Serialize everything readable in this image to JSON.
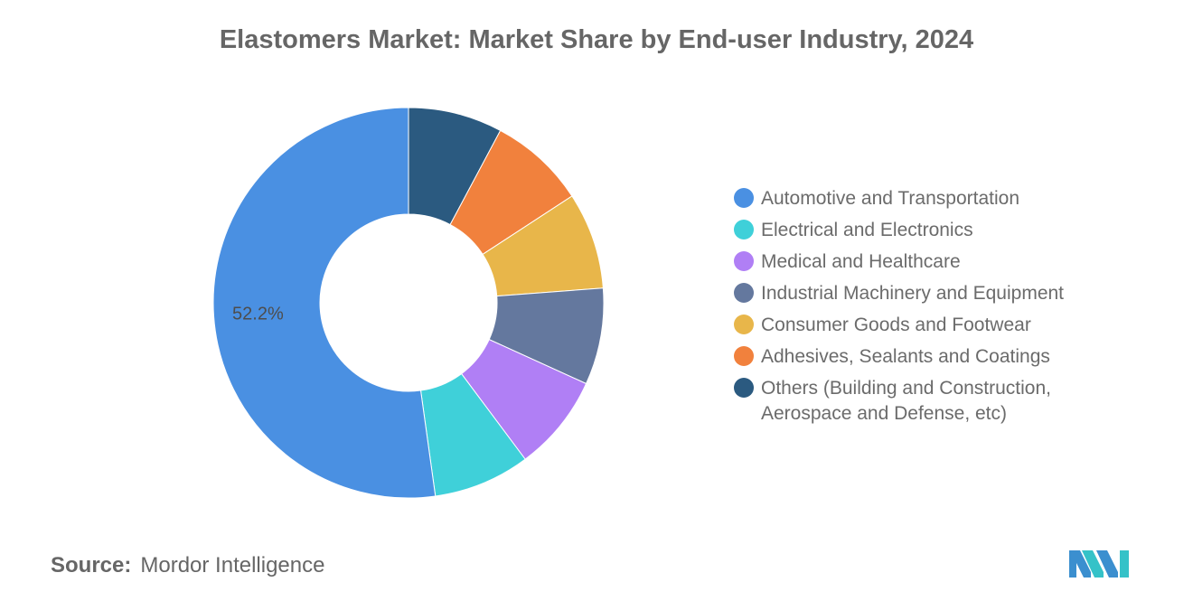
{
  "title": "Elastomers Market: Market Share by End-user Industry, 2024",
  "source_label": "Source:",
  "source_value": "Mordor Intelligence",
  "chart_data": {
    "type": "pie",
    "donut": true,
    "title": "Elastomers Market: Market Share by End-user Industry, 2024",
    "unit": "%",
    "categories": [
      "Automotive and Transportation",
      "Electrical and Electronics",
      "Medical and Healthcare",
      "Industrial Machinery and Equipment",
      "Consumer Goods and Footwear",
      "Adhesives, Sealants and Coatings",
      "Others (Building and Construction, Aerospace and Defense, etc)"
    ],
    "values": [
      52.2,
      8.0,
      8.0,
      8.0,
      8.0,
      8.0,
      7.8
    ],
    "colors": [
      "#4a90e2",
      "#3fd0d9",
      "#b07ff5",
      "#64789e",
      "#e8b64a",
      "#f1813d",
      "#2b5a80"
    ],
    "data_labels": [
      "52.2%",
      "",
      "",
      "",
      "",
      "",
      ""
    ],
    "legend_position": "right"
  }
}
